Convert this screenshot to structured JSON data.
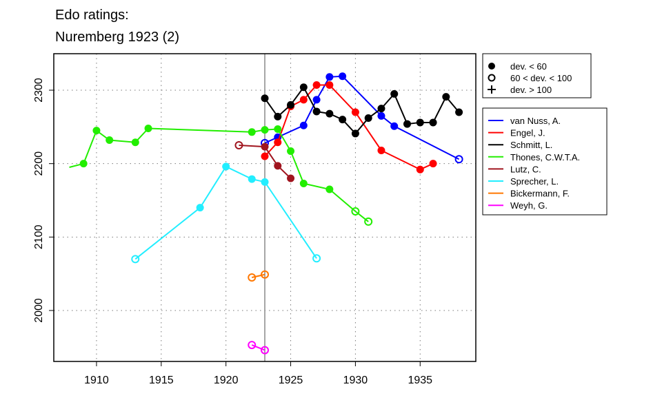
{
  "chart_data": {
    "type": "line",
    "title_lines": [
      "Edo ratings:",
      "Nuremberg 1923 (2)"
    ],
    "xlabel": "",
    "ylabel": "",
    "xlim": [
      1906.7,
      1939.3
    ],
    "ylim": [
      1930.6,
      2349.7
    ],
    "x_ticks": [
      1910,
      1915,
      1920,
      1925,
      1930,
      1935
    ],
    "y_ticks": [
      2000,
      2100,
      2200,
      2300
    ],
    "grid": "dotted",
    "reference_line_x": 1923,
    "marker_legend": [
      {
        "marker": "filled",
        "label": "dev. < 60"
      },
      {
        "marker": "open",
        "label": "60 < dev. < 100"
      },
      {
        "marker": "plus",
        "label": "dev. > 100"
      }
    ],
    "legend_placement": "right",
    "series": [
      {
        "name": "van Nuss, A.",
        "color": "#0000ff",
        "points": [
          [
            1923,
            2228,
            "open"
          ],
          [
            1924,
            2236,
            "filled"
          ],
          [
            1926,
            2252,
            "filled"
          ],
          [
            1927,
            2287,
            "filled"
          ],
          [
            1928,
            2318,
            "filled"
          ],
          [
            1929,
            2319,
            "filled"
          ],
          [
            1932,
            2265,
            "filled"
          ],
          [
            1933,
            2251,
            "filled"
          ],
          [
            1938,
            2206,
            "open"
          ]
        ]
      },
      {
        "name": "Engel, J.",
        "color": "#ff0000",
        "points": [
          [
            1923,
            2210,
            "filled"
          ],
          [
            1924,
            2229,
            "filled"
          ],
          [
            1925,
            2278,
            "filled"
          ],
          [
            1926,
            2287,
            "filled"
          ],
          [
            1927,
            2307,
            "filled"
          ],
          [
            1928,
            2307,
            "filled"
          ],
          [
            1930,
            2270,
            "filled"
          ],
          [
            1932,
            2218,
            "filled"
          ],
          [
            1935,
            2192,
            "filled"
          ],
          [
            1936,
            2200,
            "filled"
          ]
        ]
      },
      {
        "name": "Schmitt, L.",
        "color": "#000000",
        "points": [
          [
            1923,
            2289,
            "filled"
          ],
          [
            1924,
            2264,
            "filled"
          ],
          [
            1925,
            2280,
            "filled"
          ],
          [
            1926,
            2304,
            "filled"
          ],
          [
            1927,
            2271,
            "filled"
          ],
          [
            1928,
            2268,
            "filled"
          ],
          [
            1929,
            2260,
            "filled"
          ],
          [
            1930,
            2241,
            "filled"
          ],
          [
            1931,
            2262,
            "filled"
          ],
          [
            1932,
            2275,
            "filled"
          ],
          [
            1933,
            2295,
            "filled"
          ],
          [
            1934,
            2254,
            "filled"
          ],
          [
            1935,
            2256,
            "filled"
          ],
          [
            1936,
            2256,
            "filled"
          ],
          [
            1937,
            2291,
            "filled"
          ],
          [
            1938,
            2270,
            "filled"
          ]
        ]
      },
      {
        "name": "Thones, C.W.T.A.",
        "color": "#22ee00",
        "points": [
          [
            1907.9,
            2195,
            "none"
          ],
          [
            1909,
            2200,
            "filled"
          ],
          [
            1910,
            2245,
            "filled"
          ],
          [
            1911,
            2232,
            "filled"
          ],
          [
            1913,
            2229,
            "filled"
          ],
          [
            1914,
            2248,
            "filled"
          ],
          [
            1922,
            2243,
            "filled"
          ],
          [
            1923,
            2246,
            "filled"
          ],
          [
            1924,
            2247,
            "filled"
          ],
          [
            1925,
            2217,
            "filled"
          ],
          [
            1926,
            2173,
            "filled"
          ],
          [
            1928,
            2165,
            "filled"
          ],
          [
            1930,
            2135,
            "open"
          ],
          [
            1931,
            2121,
            "open"
          ]
        ]
      },
      {
        "name": "Lutz, C.",
        "color": "#a0141e",
        "points": [
          [
            1921,
            2225,
            "open"
          ],
          [
            1923,
            2223,
            "filled"
          ],
          [
            1924,
            2197,
            "filled"
          ],
          [
            1925,
            2180,
            "filled"
          ]
        ]
      },
      {
        "name": "Sprecher, L.",
        "color": "#22eeff",
        "points": [
          [
            1913,
            2070,
            "open"
          ],
          [
            1918,
            2140,
            "filled"
          ],
          [
            1920,
            2196,
            "filled"
          ],
          [
            1922,
            2179,
            "filled"
          ],
          [
            1923,
            2175,
            "filled"
          ],
          [
            1927,
            2071,
            "open"
          ]
        ]
      },
      {
        "name": "Bickermann, F.",
        "color": "#ff7700",
        "points": [
          [
            1922,
            2045,
            "open"
          ],
          [
            1923,
            2049,
            "open"
          ]
        ]
      },
      {
        "name": "Weyh, G.",
        "color": "#ff00ff",
        "points": [
          [
            1922,
            1953,
            "open"
          ],
          [
            1923,
            1946,
            "open"
          ]
        ]
      }
    ]
  }
}
